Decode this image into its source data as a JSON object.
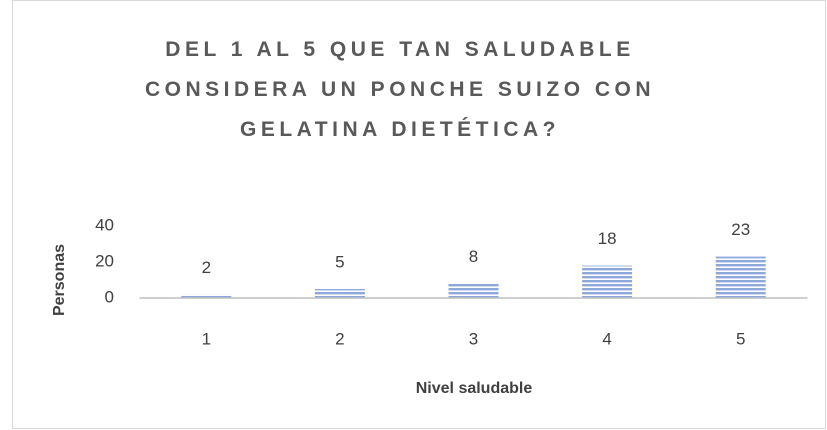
{
  "chart_data": {
    "type": "bar",
    "title": "DEL 1 AL 5 QUE TAN SALUDABLE CONSIDERA UN PONCHE SUIZO CON GELATINA DIETÉTICA?",
    "x_label": "Nivel saludable",
    "y_label": "Personas",
    "categories": [
      "1",
      "2",
      "3",
      "4",
      "5"
    ],
    "values": [
      2,
      5,
      8,
      18,
      23
    ],
    "color": "#8fa8dc",
    "ylim": [
      0,
      40
    ],
    "yticks": [
      0,
      20,
      40
    ],
    "grid": false
  }
}
